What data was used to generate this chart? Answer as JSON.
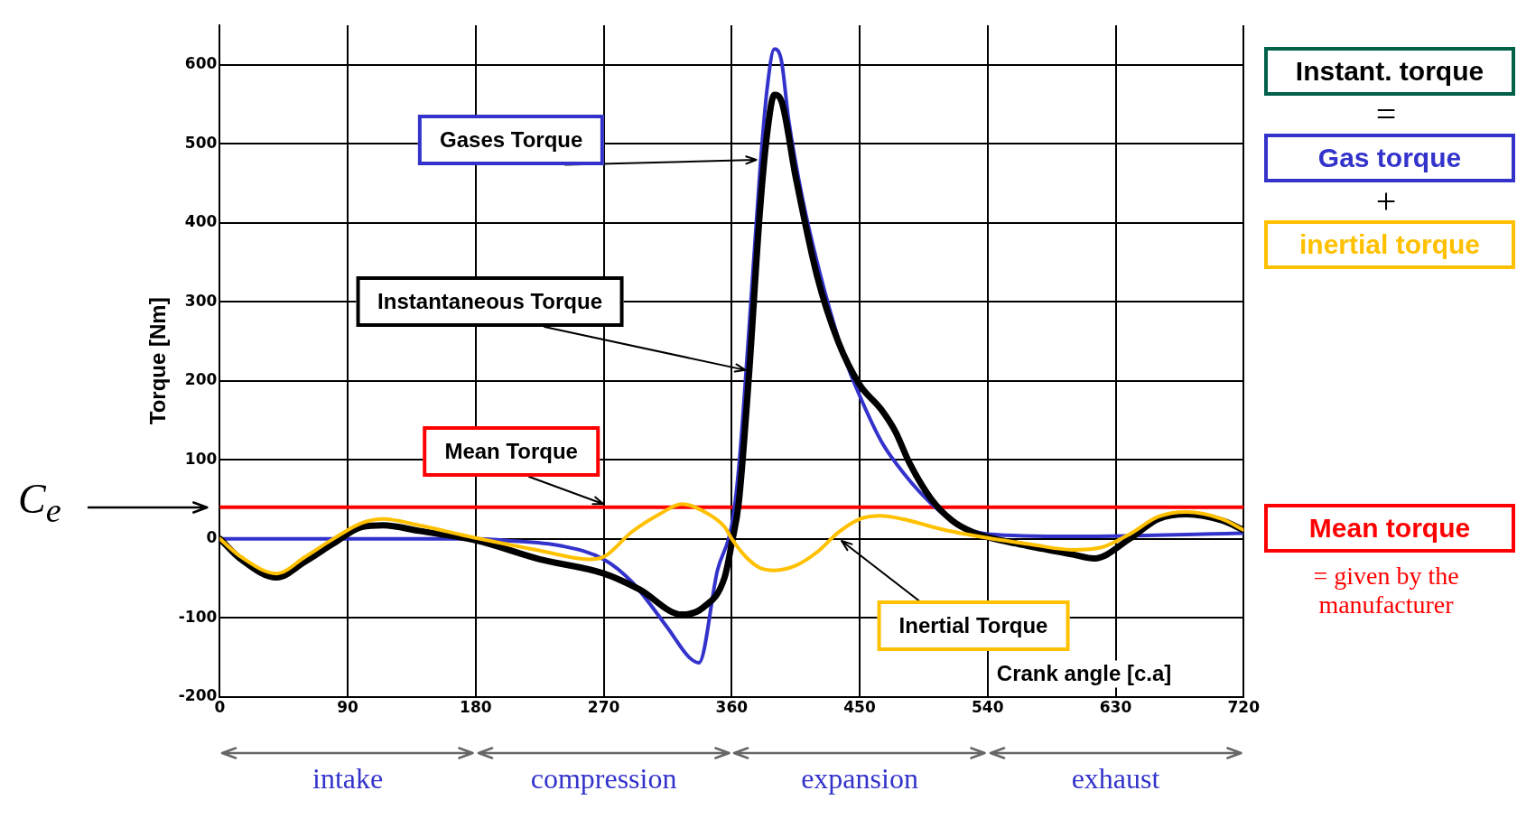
{
  "chart_data": {
    "type": "line",
    "xlabel": "Crank angle [c.a]",
    "ylabel": "Torque [Nm]",
    "xlim": [
      0,
      720
    ],
    "xticks": [
      0,
      90,
      180,
      270,
      360,
      450,
      540,
      630,
      720
    ],
    "ylim": [
      -200,
      650
    ],
    "yticks": [
      -200,
      -100,
      0,
      100,
      200,
      300,
      400,
      500,
      600
    ],
    "grid": true,
    "legend": false,
    "marker": "none",
    "line_style": "solid",
    "series": [
      {
        "name": "Instantaneous Torque",
        "color": "#000000",
        "x": [
          0,
          15,
          40,
          60,
          80,
          100,
          115,
          140,
          180,
          225,
          270,
          295,
          325,
          340,
          355,
          360,
          365,
          372,
          380,
          385,
          390,
          395,
          405,
          420,
          435,
          450,
          465,
          475,
          485,
          500,
          515,
          530,
          560,
          600,
          615,
          640,
          660,
          680,
          705,
          720
        ],
        "values": [
          0,
          -26,
          -49,
          -29,
          -6,
          15,
          17,
          10,
          -2,
          -26,
          -44,
          -64,
          -96,
          -87,
          -49,
          -6,
          46,
          203,
          418,
          514,
          562,
          554,
          458,
          333,
          249,
          195,
          164,
          136,
          96,
          51,
          23,
          8,
          -6,
          -20,
          -25,
          0,
          25,
          31,
          23,
          11
        ]
      },
      {
        "name": "Gases Torque",
        "color": "#3333cc",
        "x": [
          0,
          90,
          180,
          200,
          240,
          270,
          290,
          315,
          330,
          337,
          350,
          360,
          365,
          372,
          380,
          385,
          390,
          395,
          400,
          410,
          425,
          440,
          450,
          465,
          480,
          500,
          520,
          540,
          600,
          720
        ],
        "values": [
          0,
          0,
          0,
          -2,
          -9,
          -26,
          -55,
          -113,
          -150,
          -157,
          -40,
          17,
          90,
          260,
          469,
          571,
          620,
          605,
          531,
          429,
          316,
          226,
          181,
          124,
          85,
          45,
          17,
          6,
          3,
          7
        ]
      },
      {
        "name": "Inertial Torque",
        "color": "#ffc000",
        "x": [
          0,
          15,
          40,
          60,
          80,
          100,
          115,
          140,
          180,
          225,
          260,
          270,
          290,
          310,
          325,
          340,
          355,
          360,
          370,
          380,
          390,
          405,
          420,
          435,
          450,
          465,
          480,
          510,
          540,
          570,
          600,
          620,
          640,
          660,
          680,
          705,
          720
        ],
        "values": [
          0,
          -23,
          -44,
          -23,
          0,
          20,
          25,
          17,
          1,
          -15,
          -26,
          -23,
          9,
          32,
          44,
          35,
          15,
          0,
          -23,
          -37,
          -40,
          -34,
          -17,
          8,
          25,
          29,
          25,
          11,
          1,
          -7,
          -14,
          -11,
          6,
          28,
          34,
          25,
          11
        ]
      }
    ],
    "ref_lines": [
      {
        "axis": "y",
        "value": 40,
        "label": "Mean Torque",
        "color": "#ff0000"
      }
    ],
    "annotations": [
      "C$_{e}$",
      "Instant. torque",
      "=",
      "Gas torque",
      "+",
      "inertial torque",
      "Mean torque",
      "= given by the manufacturer",
      "intake",
      "compression",
      "expansion",
      "exhaust"
    ]
  }
}
